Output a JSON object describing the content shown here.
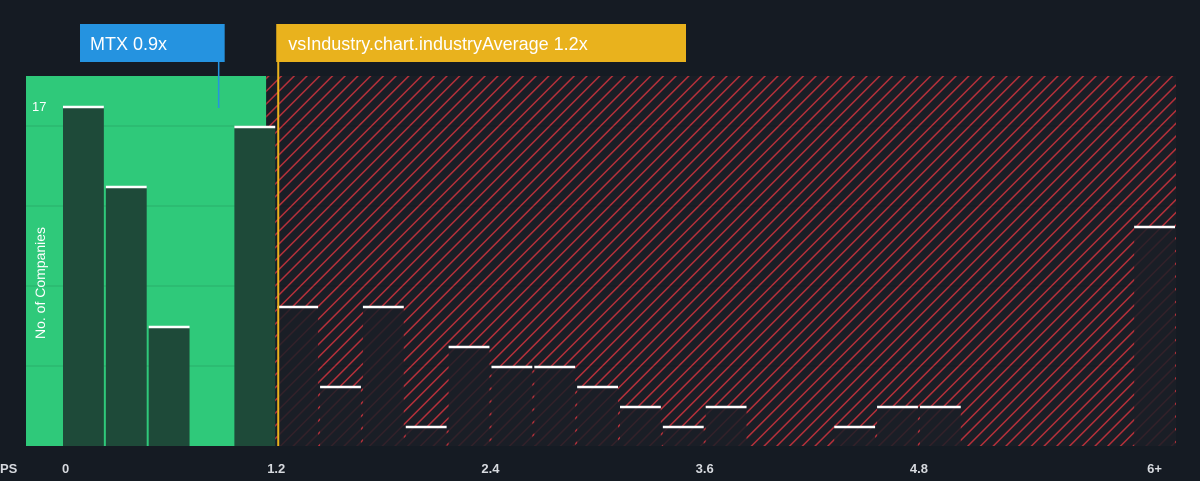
{
  "colors": {
    "background": "#151b23",
    "fair_zone": "#2fc97a",
    "fair_bar": "#1e4a39",
    "company_bar": "#2593e0",
    "industry_marker": "#e9b21d",
    "overvalued_stripe": "#b5303a",
    "overvalued_bar": "#1b1f27",
    "bar_top": "#ffffff",
    "text": "#ffffff",
    "axis_text": "#d7dadf"
  },
  "chart_data": {
    "type": "bar",
    "xlabel": "PS",
    "ylabel": "No. of Companies",
    "x_ticks": [
      "0",
      "1.2",
      "2.4",
      "3.6",
      "4.8",
      "6+"
    ],
    "y_ticks": [
      "17"
    ],
    "ylim": [
      0,
      18.5
    ],
    "bin_width": 0.24,
    "x": [
      0.0,
      0.24,
      0.48,
      0.72,
      0.96,
      1.2,
      1.44,
      1.68,
      1.92,
      2.16,
      2.4,
      2.64,
      2.88,
      3.12,
      3.36,
      3.6,
      3.84,
      4.08,
      4.32,
      4.56,
      4.8,
      5.04,
      5.28,
      5.52,
      5.76,
      6.0
    ],
    "values": [
      17,
      13,
      6,
      0,
      16,
      7,
      3,
      7,
      1,
      5,
      4,
      4,
      3,
      2,
      1,
      2,
      0,
      0,
      1,
      2,
      2,
      0,
      0,
      0,
      0,
      11
    ],
    "company": {
      "label": "MTX 0.9x",
      "value": 0.9
    },
    "industry": {
      "label": "vsIndustry.chart.industryAverage 1.2x",
      "value": 1.2
    }
  }
}
